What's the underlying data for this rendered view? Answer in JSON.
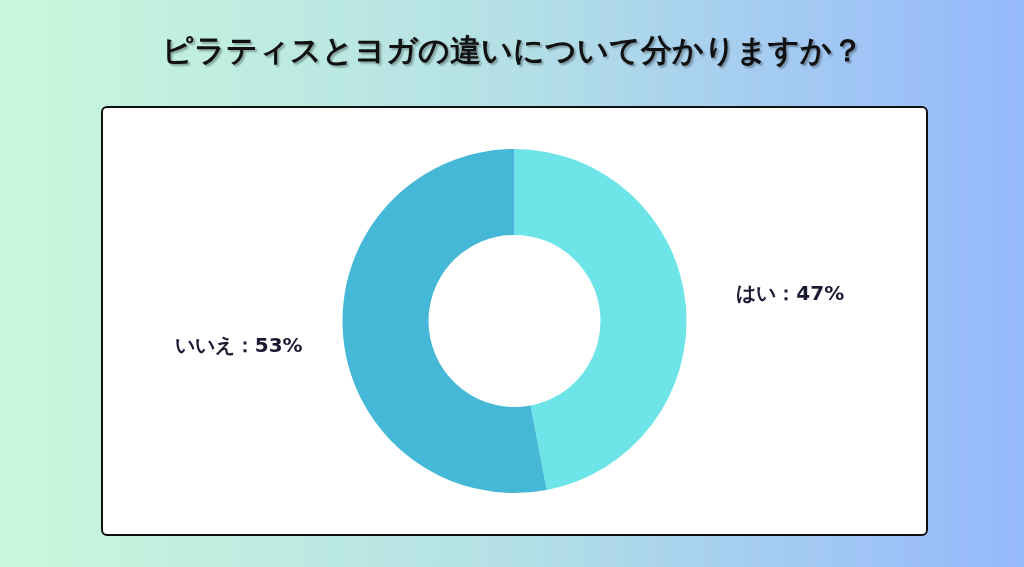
{
  "chart_data": {
    "type": "donut",
    "title": "ピラティスとヨガの違いについて分かりますか？",
    "categories": [
      "はい",
      "いいえ"
    ],
    "values": [
      47,
      53
    ],
    "colors": [
      "#6ce4e8",
      "#44b8d6"
    ],
    "value_labels": [
      "47%",
      "53%"
    ],
    "legend": false
  }
}
